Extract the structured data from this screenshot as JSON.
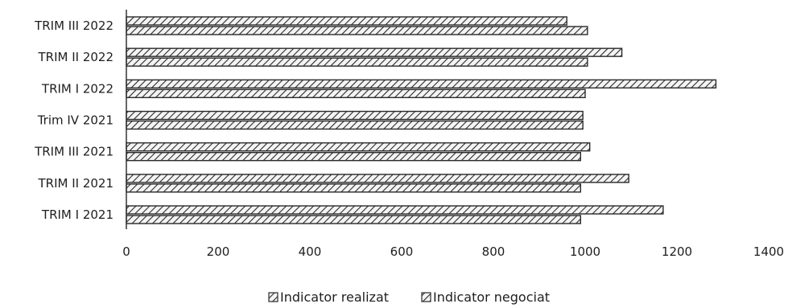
{
  "chart_data": {
    "type": "bar",
    "orientation": "horizontal",
    "categories": [
      "TRIM I 2021",
      "TRIM II 2021",
      "TRIM III 2021",
      "Trim IV 2021",
      "TRIM I 2022",
      "TRIM II 2022",
      "TRIM III 2022"
    ],
    "series": [
      {
        "name": "Indicator realizat",
        "values": [
          1170,
          1095,
          1010,
          995,
          1285,
          1080,
          960
        ]
      },
      {
        "name": "Indicator negociat",
        "values": [
          990,
          990,
          990,
          995,
          1000,
          1005,
          1005
        ]
      }
    ],
    "xlim": [
      0,
      1400
    ],
    "xticks": [
      "0",
      "200",
      "400",
      "600",
      "800",
      "1000",
      "1200",
      "1400"
    ],
    "title": "",
    "xlabel": "",
    "ylabel": "",
    "grid": false,
    "legend_position": "bottom",
    "colors": {
      "ink": "#2a2a2a",
      "fill": "#f4f4f4",
      "axis": "#333333"
    }
  }
}
